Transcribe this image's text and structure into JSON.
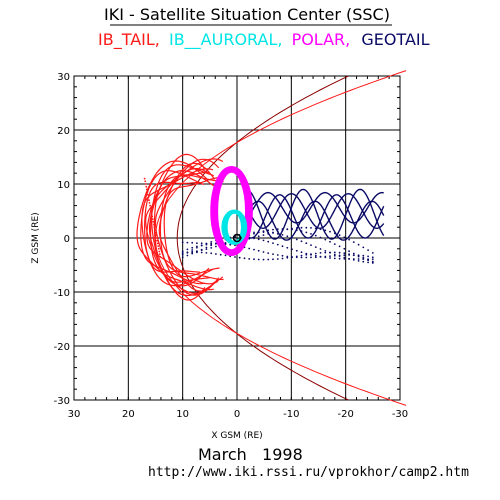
{
  "title": "IKI - Satellite Situation Center (SSC)",
  "legend": [
    {
      "label": "IB_TAIL,",
      "color": "#ff1a1a"
    },
    {
      "label": "IB__AURORAL,",
      "color": "#00e5e5"
    },
    {
      "label": "POLAR,",
      "color": "#ff00ff"
    },
    {
      "label": "GEOTAIL",
      "color": "#0a0a66"
    }
  ],
  "chart_data": {
    "type": "scatter",
    "xlabel": "X GSM (RE)",
    "ylabel": "Z GSM (RE)",
    "xlim": [
      30,
      -30
    ],
    "ylim": [
      -30,
      30
    ],
    "xticks": [
      30,
      20,
      10,
      0,
      -10,
      -20,
      -30
    ],
    "xtick_labels": [
      "30",
      "20",
      "10",
      "0",
      "-10",
      "-20",
      "-30"
    ],
    "yticks": [
      30,
      20,
      10,
      0,
      -10,
      -20,
      -30
    ],
    "ytick_labels": [
      "30",
      "20",
      "10",
      "0",
      "-10",
      "-20",
      "-30"
    ],
    "grid": true,
    "series": [
      {
        "name": "IB_TAIL",
        "color": "#ff1a1a"
      },
      {
        "name": "IB__AURORAL",
        "color": "#00e5e5"
      },
      {
        "name": "POLAR",
        "color": "#ff00ff"
      },
      {
        "name": "GEOTAIL",
        "color": "#0a0a66"
      }
    ],
    "boundary_color": "#8b0000",
    "bowshock_color": "#ff1a1a"
  },
  "footer": {
    "date": "March   1998",
    "url": "http://www.iki.rssi.ru/vprokhor/camp2.htm"
  }
}
